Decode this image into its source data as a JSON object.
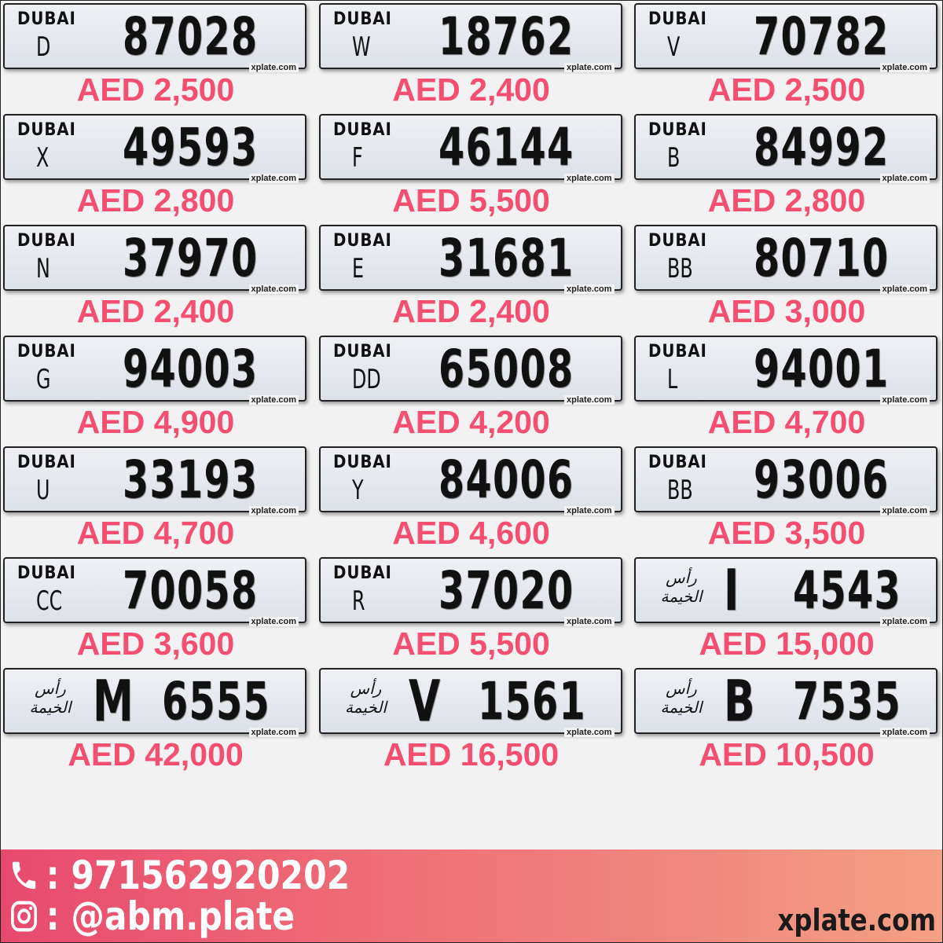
{
  "watermark": "xplate.com",
  "price_color": "#f44f71",
  "plates": [
    {
      "emirate": "DUBAI",
      "logo": "DUBAI",
      "code": "D",
      "number": "87028",
      "price": "AED 2,500"
    },
    {
      "emirate": "DUBAI",
      "logo": "DUBAI",
      "code": "W",
      "number": "18762",
      "price": "AED 2,400"
    },
    {
      "emirate": "DUBAI",
      "logo": "DUBAI",
      "code": "V",
      "number": "70782",
      "price": "AED 2,500"
    },
    {
      "emirate": "DUBAI",
      "logo": "DUBAI",
      "code": "X",
      "number": "49593",
      "price": "AED 2,800"
    },
    {
      "emirate": "DUBAI",
      "logo": "DUBAI",
      "code": "F",
      "number": "46144",
      "price": "AED 5,500"
    },
    {
      "emirate": "DUBAI",
      "logo": "DUBAI",
      "code": "B",
      "number": "84992",
      "price": "AED 2,800"
    },
    {
      "emirate": "DUBAI",
      "logo": "DUBAI",
      "code": "N",
      "number": "37970",
      "price": "AED 2,400"
    },
    {
      "emirate": "DUBAI",
      "logo": "DUBAI",
      "code": "E",
      "number": "31681",
      "price": "AED 2,400"
    },
    {
      "emirate": "DUBAI",
      "logo": "DUBAI",
      "code": "BB",
      "number": "80710",
      "price": "AED 3,000"
    },
    {
      "emirate": "DUBAI",
      "logo": "DUBAI",
      "code": "G",
      "number": "94003",
      "price": "AED 4,900"
    },
    {
      "emirate": "DUBAI",
      "logo": "DUBAI",
      "code": "DD",
      "number": "65008",
      "price": "AED 4,200"
    },
    {
      "emirate": "DUBAI",
      "logo": "DUBAI",
      "code": "L",
      "number": "94001",
      "price": "AED 4,700"
    },
    {
      "emirate": "DUBAI",
      "logo": "DUBAI",
      "code": "U",
      "number": "33193",
      "price": "AED 4,700"
    },
    {
      "emirate": "DUBAI",
      "logo": "DUBAI",
      "code": "Y",
      "number": "84006",
      "price": "AED 4,600"
    },
    {
      "emirate": "DUBAI",
      "logo": "DUBAI",
      "code": "BB",
      "number": "93006",
      "price": "AED 3,500"
    },
    {
      "emirate": "DUBAI",
      "logo": "DUBAI",
      "code": "CC",
      "number": "70058",
      "price": "AED 3,600"
    },
    {
      "emirate": "DUBAI",
      "logo": "DUBAI",
      "code": "R",
      "number": "37020",
      "price": "AED 5,500"
    },
    {
      "emirate": "RAK",
      "logo": "رأس الخيمة",
      "code": "I",
      "number": "4543",
      "price": "AED 15,000"
    },
    {
      "emirate": "RAK",
      "logo": "رأس الخيمة",
      "code": "M",
      "number": "6555",
      "price": "AED 42,000"
    },
    {
      "emirate": "RAK",
      "logo": "رأس الخيمة",
      "code": "V",
      "number": "1561",
      "price": "AED 16,500"
    },
    {
      "emirate": "RAK",
      "logo": "رأس الخيمة",
      "code": "B",
      "number": "7535",
      "price": "AED 10,500"
    }
  ],
  "footer": {
    "phone_icon": "phone-icon",
    "phone": ": 971562920202",
    "instagram_icon": "instagram-icon",
    "instagram": ": @abm.plate",
    "site": "xplate.com"
  }
}
